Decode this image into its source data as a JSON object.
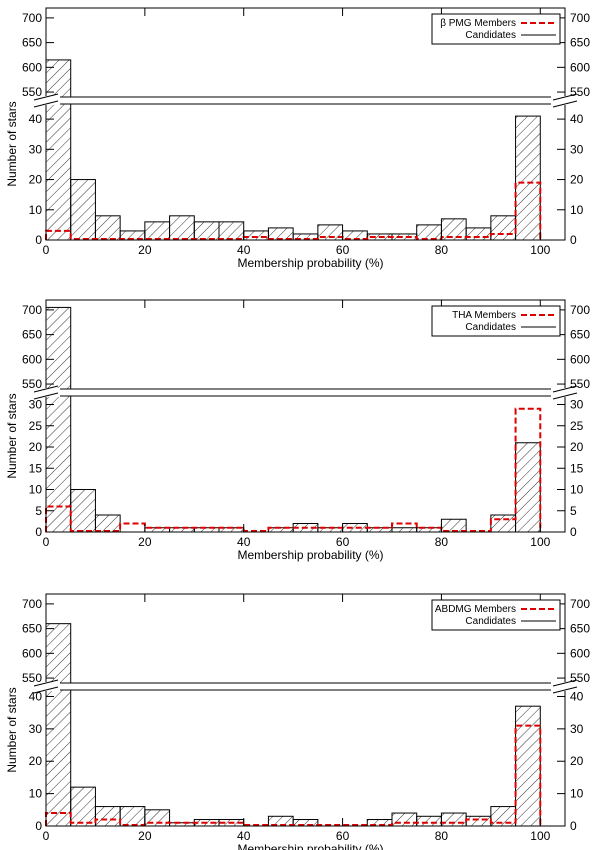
{
  "chart_data": [
    {
      "type": "bar",
      "bin_edges": [
        0,
        5,
        10,
        15,
        20,
        25,
        30,
        35,
        40,
        45,
        50,
        55,
        60,
        65,
        70,
        75,
        80,
        85,
        90,
        95,
        100
      ],
      "series": [
        {
          "name": "Candidates",
          "style": "solid black, hatched",
          "values": [
            615,
            20,
            8,
            3,
            6,
            8,
            6,
            6,
            3,
            4,
            2,
            5,
            3,
            2,
            2,
            5,
            7,
            4,
            8,
            41
          ]
        },
        {
          "name": "β PMG Members",
          "style": "dashed red",
          "values": [
            3,
            0,
            0,
            0,
            0,
            0,
            0,
            0,
            1,
            0,
            0,
            1,
            0,
            1,
            1,
            0,
            1,
            1,
            2,
            19
          ]
        }
      ],
      "xlabel": "Membership probability (%)",
      "ylabel": "Number of stars",
      "xlim": [
        0,
        105
      ],
      "xticks": [
        0,
        20,
        40,
        60,
        80,
        100
      ],
      "ylim_lower": [
        0,
        45
      ],
      "ylim_upper": [
        540,
        720
      ],
      "yticks_lower": [
        0,
        10,
        20,
        30,
        40
      ],
      "yticks_upper": [
        550,
        600,
        650,
        700
      ],
      "legend_position": "top-right",
      "legend": [
        "β PMG Members",
        "Candidates"
      ]
    },
    {
      "type": "bar",
      "bin_edges": [
        0,
        5,
        10,
        15,
        20,
        25,
        30,
        35,
        40,
        45,
        50,
        55,
        60,
        65,
        70,
        75,
        80,
        85,
        90,
        95,
        100
      ],
      "series": [
        {
          "name": "Candidates",
          "style": "solid black, hatched",
          "values": [
            705,
            10,
            4,
            0,
            1,
            1,
            1,
            1,
            0,
            1,
            2,
            1,
            2,
            1,
            1,
            1,
            3,
            0,
            4,
            21
          ]
        },
        {
          "name": "THA Members",
          "style": "dashed red",
          "values": [
            6,
            0,
            0,
            2,
            1,
            1,
            1,
            1,
            0,
            1,
            1,
            1,
            1,
            1,
            2,
            1,
            0,
            0,
            3,
            29
          ]
        }
      ],
      "xlabel": "Membership probability (%)",
      "ylabel": "Number of stars",
      "xlim": [
        0,
        105
      ],
      "xticks": [
        0,
        20,
        40,
        60,
        80,
        100
      ],
      "ylim_lower": [
        0,
        32
      ],
      "ylim_upper": [
        540,
        720
      ],
      "yticks_lower": [
        0,
        5,
        10,
        15,
        20,
        25,
        30
      ],
      "yticks_upper": [
        550,
        600,
        650,
        700
      ],
      "legend_position": "top-right",
      "legend": [
        "THA Members",
        "Candidates"
      ]
    },
    {
      "type": "bar",
      "bin_edges": [
        0,
        5,
        10,
        15,
        20,
        25,
        30,
        35,
        40,
        45,
        50,
        55,
        60,
        65,
        70,
        75,
        80,
        85,
        90,
        95,
        100
      ],
      "series": [
        {
          "name": "Candidates",
          "style": "solid black, hatched",
          "values": [
            660,
            12,
            6,
            6,
            5,
            1,
            2,
            2,
            0,
            3,
            2,
            0,
            0,
            2,
            4,
            3,
            4,
            3,
            6,
            37
          ]
        },
        {
          "name": "ABDMG Members",
          "style": "dashed red",
          "values": [
            4,
            1,
            2,
            0,
            1,
            1,
            1,
            1,
            0,
            0,
            0,
            0,
            0,
            0,
            1,
            1,
            1,
            2,
            1,
            31
          ]
        }
      ],
      "xlabel": "Membership probability (%)",
      "ylabel": "Number of stars",
      "xlim": [
        0,
        105
      ],
      "xticks": [
        0,
        20,
        40,
        60,
        80,
        100
      ],
      "ylim_lower": [
        0,
        42
      ],
      "ylim_upper": [
        540,
        720
      ],
      "yticks_lower": [
        0,
        10,
        20,
        30,
        40
      ],
      "yticks_upper": [
        550,
        600,
        650,
        700
      ],
      "legend_position": "top-right",
      "legend": [
        "ABDMG Members",
        "Candidates"
      ]
    }
  ],
  "colors": {
    "candidates": "#000000",
    "members": "#dd0000",
    "background": "#ffffff"
  }
}
